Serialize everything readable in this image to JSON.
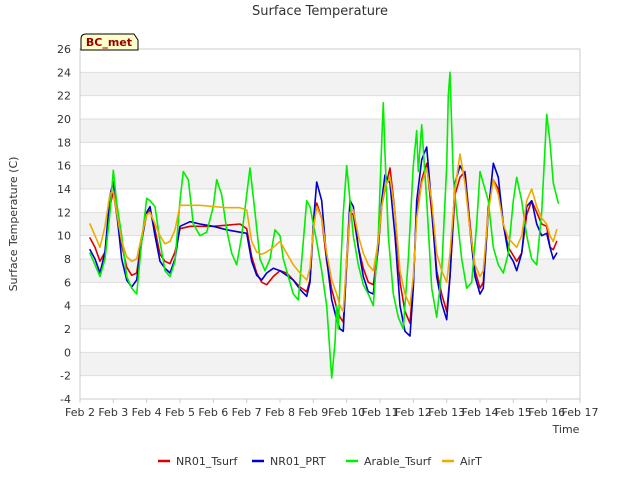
{
  "chart_data": {
    "type": "line",
    "title": "Surface Temperature",
    "xlabel": "Time",
    "ylabel": "Surface Temperature (C)",
    "station_label": "BC_met",
    "xlim": [
      2,
      17
    ],
    "ylim": [
      -4,
      26
    ],
    "x_ticks": [
      2,
      3,
      4,
      5,
      6,
      7,
      8,
      9,
      10,
      11,
      12,
      13,
      14,
      15,
      16,
      17
    ],
    "x_tick_labels": [
      "Feb 2",
      "Feb 3",
      "Feb 4",
      "Feb 5",
      "Feb 6",
      "Feb 7",
      "Feb 8",
      "Feb 9",
      "Feb 10",
      "Feb 11",
      "Feb 12",
      "Feb 13",
      "Feb 14",
      "Feb 15",
      "Feb 16",
      "Feb 17"
    ],
    "y_ticks": [
      -4,
      -2,
      0,
      2,
      4,
      6,
      8,
      10,
      12,
      14,
      16,
      18,
      20,
      22,
      24,
      26
    ],
    "y_tick_labels": [
      "-4",
      "-2",
      "0",
      "2",
      "4",
      "6",
      "8",
      "10",
      "12",
      "14",
      "16",
      "18",
      "20",
      "22",
      "24",
      "26"
    ],
    "grid": true,
    "legend_position": "bottom",
    "series": [
      {
        "name": "NR01_Tsurf",
        "color": "#dd0000",
        "x": [
          2.3,
          2.45,
          2.6,
          2.75,
          2.9,
          3.0,
          3.1,
          3.25,
          3.4,
          3.55,
          3.7,
          3.85,
          4.0,
          4.1,
          4.25,
          4.4,
          4.55,
          4.7,
          4.85,
          5.0,
          5.3,
          5.6,
          6.0,
          6.4,
          6.8,
          7.0,
          7.15,
          7.3,
          7.45,
          7.6,
          7.8,
          8.0,
          8.2,
          8.4,
          8.6,
          8.8,
          8.9,
          9.0,
          9.1,
          9.25,
          9.4,
          9.55,
          9.7,
          9.8,
          9.9,
          10.0,
          10.1,
          10.2,
          10.35,
          10.5,
          10.65,
          10.8,
          10.95,
          11.05,
          11.15,
          11.3,
          11.45,
          11.6,
          11.75,
          11.9,
          12.0,
          12.1,
          12.25,
          12.4,
          12.55,
          12.7,
          12.85,
          13.0,
          13.1,
          13.25,
          13.4,
          13.55,
          13.7,
          13.85,
          14.0,
          14.1,
          14.25,
          14.4,
          14.55,
          14.7,
          14.85,
          15.0,
          15.1,
          15.25,
          15.4,
          15.55,
          15.7,
          15.85,
          16.0,
          16.1,
          16.2,
          16.3
        ],
        "y": [
          9.8,
          9.0,
          7.8,
          8.6,
          12.5,
          13.8,
          11.8,
          9.2,
          7.3,
          6.6,
          6.8,
          9.8,
          11.8,
          12.2,
          10.5,
          8.4,
          7.8,
          7.6,
          8.6,
          10.6,
          10.8,
          10.8,
          10.8,
          10.9,
          11.0,
          10.6,
          8.2,
          6.8,
          6.0,
          5.8,
          6.5,
          7.0,
          6.8,
          6.2,
          5.6,
          5.2,
          6.2,
          10.5,
          12.8,
          11.5,
          7.8,
          5.4,
          3.8,
          3.0,
          2.6,
          7.5,
          12.0,
          11.8,
          9.0,
          7.2,
          6.0,
          5.8,
          9.0,
          12.5,
          14.0,
          15.8,
          12.0,
          6.0,
          3.5,
          2.5,
          6.0,
          12.0,
          14.8,
          16.2,
          12.0,
          7.0,
          5.0,
          3.5,
          6.5,
          13.5,
          15.0,
          15.5,
          11.0,
          7.0,
          5.5,
          6.0,
          12.5,
          14.8,
          14.0,
          11.0,
          9.0,
          8.3,
          7.8,
          8.5,
          11.8,
          13.0,
          12.0,
          11.0,
          10.8,
          9.0,
          8.8,
          9.5
        ]
      },
      {
        "name": "NR01_PRT",
        "color": "#0000cc",
        "x": [
          2.3,
          2.45,
          2.6,
          2.75,
          2.9,
          3.0,
          3.1,
          3.25,
          3.4,
          3.55,
          3.7,
          3.85,
          4.0,
          4.1,
          4.25,
          4.4,
          4.55,
          4.7,
          4.85,
          5.0,
          5.3,
          5.6,
          6.0,
          6.4,
          6.8,
          7.0,
          7.15,
          7.3,
          7.45,
          7.6,
          7.8,
          8.0,
          8.2,
          8.4,
          8.6,
          8.8,
          8.9,
          9.0,
          9.1,
          9.25,
          9.4,
          9.55,
          9.7,
          9.8,
          9.9,
          10.0,
          10.1,
          10.2,
          10.35,
          10.5,
          10.65,
          10.8,
          10.95,
          11.05,
          11.15,
          11.3,
          11.45,
          11.6,
          11.75,
          11.9,
          12.0,
          12.1,
          12.25,
          12.4,
          12.55,
          12.7,
          12.85,
          13.0,
          13.1,
          13.25,
          13.4,
          13.55,
          13.7,
          13.85,
          14.0,
          14.1,
          14.25,
          14.4,
          14.55,
          14.7,
          14.85,
          15.0,
          15.1,
          15.25,
          15.4,
          15.55,
          15.7,
          15.85,
          16.0,
          16.1,
          16.2,
          16.3
        ],
        "y": [
          8.8,
          8.0,
          6.8,
          8.6,
          13.5,
          14.6,
          12.0,
          8.0,
          6.2,
          5.6,
          6.2,
          9.5,
          12.0,
          12.5,
          10.0,
          7.8,
          7.2,
          6.8,
          8.0,
          10.8,
          11.2,
          11.0,
          10.8,
          10.5,
          10.3,
          10.2,
          7.8,
          6.6,
          6.2,
          6.8,
          7.2,
          7.0,
          6.6,
          6.2,
          5.4,
          4.8,
          6.0,
          11.0,
          14.6,
          13.0,
          8.0,
          4.5,
          2.8,
          2.0,
          1.8,
          8.0,
          13.0,
          12.5,
          9.0,
          6.5,
          5.2,
          5.0,
          9.0,
          13.0,
          15.2,
          14.5,
          10.0,
          4.0,
          1.8,
          1.4,
          5.5,
          13.0,
          16.5,
          17.6,
          12.5,
          6.5,
          4.2,
          2.8,
          6.5,
          14.5,
          16.0,
          15.2,
          10.5,
          6.5,
          5.0,
          5.5,
          12.0,
          16.2,
          15.0,
          11.0,
          8.5,
          7.8,
          7.0,
          8.5,
          12.5,
          13.0,
          11.0,
          10.0,
          10.2,
          9.0,
          8.0,
          8.5
        ]
      },
      {
        "name": "Arable_Tsurf",
        "color": "#00ee00",
        "x": [
          2.3,
          2.45,
          2.6,
          2.75,
          2.9,
          3.0,
          3.1,
          3.25,
          3.4,
          3.55,
          3.7,
          3.85,
          4.0,
          4.1,
          4.25,
          4.4,
          4.55,
          4.7,
          4.85,
          5.0,
          5.1,
          5.25,
          5.4,
          5.6,
          5.8,
          6.0,
          6.1,
          6.25,
          6.4,
          6.55,
          6.7,
          6.85,
          7.0,
          7.1,
          7.25,
          7.4,
          7.55,
          7.7,
          7.85,
          8.0,
          8.1,
          8.25,
          8.4,
          8.55,
          8.7,
          8.8,
          8.9,
          9.0,
          9.1,
          9.25,
          9.4,
          9.55,
          9.65,
          9.7,
          9.75,
          9.8,
          9.9,
          10.0,
          10.1,
          10.2,
          10.35,
          10.5,
          10.65,
          10.8,
          10.95,
          11.05,
          11.1,
          11.15,
          11.25,
          11.4,
          11.55,
          11.7,
          11.85,
          12.0,
          12.1,
          12.15,
          12.25,
          12.4,
          12.55,
          12.7,
          12.85,
          13.0,
          13.05,
          13.1,
          13.2,
          13.3,
          13.45,
          13.6,
          13.75,
          13.9,
          14.0,
          14.1,
          14.25,
          14.4,
          14.55,
          14.7,
          14.85,
          15.0,
          15.1,
          15.25,
          15.4,
          15.55,
          15.7,
          15.85,
          15.95,
          16.0,
          16.1,
          16.2,
          16.35
        ],
        "y": [
          8.5,
          7.5,
          6.5,
          8.0,
          12.0,
          15.6,
          12.8,
          10.0,
          6.5,
          5.5,
          5.0,
          9.5,
          13.2,
          13.0,
          12.5,
          9.5,
          7.0,
          6.5,
          7.8,
          13.0,
          15.5,
          14.8,
          11.0,
          10.0,
          10.3,
          12.5,
          14.8,
          13.5,
          10.5,
          8.5,
          7.5,
          10.0,
          13.5,
          15.8,
          12.0,
          8.0,
          7.0,
          8.0,
          10.5,
          10.0,
          8.0,
          6.5,
          5.0,
          4.5,
          9.5,
          13.0,
          12.5,
          11.0,
          9.5,
          7.0,
          4.0,
          -2.2,
          0.8,
          4.0,
          2.0,
          6.0,
          12.0,
          16.0,
          13.0,
          10.0,
          7.5,
          5.8,
          5.0,
          4.0,
          10.0,
          18.0,
          21.4,
          17.0,
          10.0,
          5.0,
          3.0,
          2.0,
          8.0,
          16.0,
          19.0,
          15.5,
          19.5,
          13.0,
          5.5,
          3.0,
          7.0,
          16.0,
          22.0,
          24.0,
          15.0,
          12.0,
          8.0,
          5.5,
          6.0,
          11.0,
          15.5,
          14.5,
          13.0,
          9.0,
          7.5,
          6.8,
          8.5,
          13.0,
          15.0,
          13.0,
          10.0,
          8.0,
          7.5,
          12.0,
          17.5,
          20.4,
          18.0,
          14.5,
          12.8
        ]
      },
      {
        "name": "AirT",
        "color": "#eeaa00",
        "x": [
          2.3,
          2.45,
          2.6,
          2.75,
          2.9,
          3.0,
          3.1,
          3.25,
          3.4,
          3.55,
          3.7,
          3.85,
          4.0,
          4.1,
          4.25,
          4.4,
          4.55,
          4.7,
          4.85,
          5.0,
          5.3,
          5.6,
          6.0,
          6.4,
          6.8,
          7.0,
          7.15,
          7.3,
          7.45,
          7.6,
          7.8,
          8.0,
          8.2,
          8.4,
          8.6,
          8.8,
          8.9,
          9.0,
          9.1,
          9.25,
          9.4,
          9.55,
          9.7,
          9.8,
          9.9,
          10.0,
          10.1,
          10.2,
          10.35,
          10.5,
          10.65,
          10.8,
          10.95,
          11.05,
          11.15,
          11.3,
          11.45,
          11.6,
          11.75,
          11.9,
          12.0,
          12.1,
          12.25,
          12.4,
          12.55,
          12.7,
          12.85,
          13.0,
          13.1,
          13.25,
          13.4,
          13.55,
          13.7,
          13.85,
          14.0,
          14.1,
          14.25,
          14.4,
          14.55,
          14.7,
          14.85,
          15.0,
          15.1,
          15.25,
          15.4,
          15.55,
          15.7,
          15.85,
          16.0,
          16.1,
          16.2,
          16.3
        ],
        "y": [
          11.0,
          10.0,
          9.0,
          10.8,
          13.6,
          13.8,
          12.0,
          9.5,
          8.2,
          7.8,
          8.0,
          10.0,
          11.8,
          12.0,
          11.0,
          10.0,
          9.3,
          9.5,
          10.5,
          12.6,
          12.6,
          12.6,
          12.5,
          12.4,
          12.4,
          12.2,
          9.5,
          8.6,
          8.4,
          8.6,
          9.0,
          9.5,
          8.5,
          7.5,
          6.8,
          6.2,
          7.2,
          10.5,
          12.5,
          11.5,
          8.5,
          6.2,
          5.0,
          4.0,
          3.5,
          8.0,
          12.0,
          12.2,
          10.0,
          8.5,
          7.5,
          7.0,
          9.5,
          12.5,
          14.2,
          15.0,
          12.0,
          7.0,
          5.0,
          4.0,
          6.5,
          11.5,
          14.5,
          15.8,
          13.0,
          8.5,
          7.0,
          6.0,
          8.5,
          14.0,
          17.0,
          14.5,
          10.5,
          7.5,
          6.5,
          7.0,
          12.0,
          14.8,
          13.5,
          11.0,
          9.8,
          9.3,
          9.0,
          10.0,
          13.0,
          14.0,
          12.5,
          11.5,
          11.0,
          10.0,
          9.5,
          10.5
        ]
      }
    ]
  }
}
